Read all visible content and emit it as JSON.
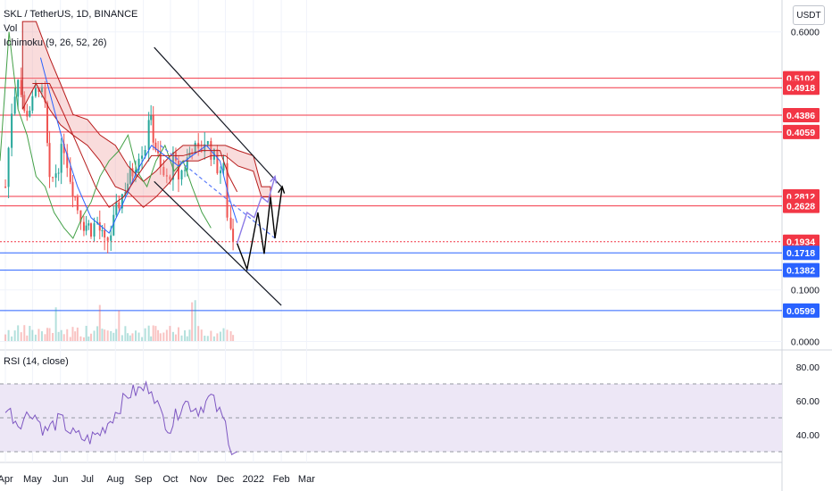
{
  "header": {
    "symbol_line": "SKL / TetherUS, 1D, BINANCE",
    "vol_label": "Vol",
    "ichimoku_label": "Ichimoku (9, 26, 52, 26)",
    "rsi_label": "RSI (14, close)",
    "unit": "USDT"
  },
  "colors": {
    "up": "#26a69a",
    "down": "#ef5350",
    "level_red": "#f23645",
    "level_blue": "#2962ff",
    "ichimoku_tenkan": "#2962ff",
    "ichimoku_kijun": "#b71c1c",
    "ichimoku_lagging": "#43a047",
    "cloud_bull": "#a5d6a7",
    "cloud_bear": "#ef9a9a",
    "rsi_line": "#7e57c2",
    "rsi_band": "#ede7f6",
    "channel": "#131722",
    "projection_black": "#000000",
    "projection_purple": "#8c7ae6"
  },
  "chart_data": [
    {
      "type": "line",
      "panel": "price",
      "y_axis_ticks": [
        "0.6000",
        "0.1000",
        "0.0000"
      ],
      "x_axis_ticks": [
        "Apr",
        "May",
        "Jun",
        "Jul",
        "Aug",
        "Sep",
        "Oct",
        "Nov",
        "Dec",
        "2022",
        "Feb",
        "Mar"
      ],
      "price_path": [
        [
          "2021-04-01",
          0.3
        ],
        [
          "2021-04-08",
          0.45
        ],
        [
          "2021-04-15",
          0.52
        ],
        [
          "2021-04-22",
          0.44
        ],
        [
          "2021-05-01",
          0.46
        ],
        [
          "2021-05-08",
          0.5
        ],
        [
          "2021-05-15",
          0.45
        ],
        [
          "2021-05-20",
          0.3
        ],
        [
          "2021-05-27",
          0.33
        ],
        [
          "2021-06-05",
          0.38
        ],
        [
          "2021-06-12",
          0.32
        ],
        [
          "2021-06-20",
          0.26
        ],
        [
          "2021-06-27",
          0.23
        ],
        [
          "2021-07-05",
          0.22
        ],
        [
          "2021-07-12",
          0.23
        ],
        [
          "2021-07-20",
          0.185
        ],
        [
          "2021-07-27",
          0.21
        ],
        [
          "2021-08-05",
          0.27
        ],
        [
          "2021-08-12",
          0.3
        ],
        [
          "2021-08-20",
          0.33
        ],
        [
          "2021-08-27",
          0.37
        ],
        [
          "2021-09-03",
          0.38
        ],
        [
          "2021-09-07",
          0.44
        ],
        [
          "2021-09-12",
          0.4
        ],
        [
          "2021-09-20",
          0.33
        ],
        [
          "2021-09-27",
          0.31
        ],
        [
          "2021-10-04",
          0.35
        ],
        [
          "2021-10-10",
          0.32
        ],
        [
          "2021-10-17",
          0.34
        ],
        [
          "2021-10-25",
          0.38
        ],
        [
          "2021-11-01",
          0.36
        ],
        [
          "2021-11-08",
          0.39
        ],
        [
          "2021-11-15",
          0.37
        ],
        [
          "2021-11-22",
          0.34
        ],
        [
          "2021-11-29",
          0.33
        ],
        [
          "2021-12-03",
          0.25
        ],
        [
          "2021-12-07",
          0.22
        ],
        [
          "2021-12-12",
          0.19
        ]
      ],
      "horizontal_levels": [
        {
          "value": 0.5102,
          "label": "0.5102",
          "kind": "resistance"
        },
        {
          "value": 0.4918,
          "label": "0.4918",
          "kind": "resistance"
        },
        {
          "value": 0.4386,
          "label": "0.4386",
          "kind": "resistance"
        },
        {
          "value": 0.4059,
          "label": "0.4059",
          "kind": "resistance"
        },
        {
          "value": 0.2812,
          "label": "0.2812",
          "kind": "resistance"
        },
        {
          "value": 0.2628,
          "label": "0.2628",
          "kind": "resistance"
        },
        {
          "value": 0.1934,
          "label": "0.1934",
          "kind": "current"
        },
        {
          "value": 0.1718,
          "label": "0.1718",
          "kind": "support"
        },
        {
          "value": 0.1382,
          "label": "0.1382",
          "kind": "support"
        },
        {
          "value": 0.0599,
          "label": "0.0599",
          "kind": "support"
        }
      ],
      "channel": {
        "upper": [
          [
            "2021-09-13",
            0.57
          ],
          [
            "2022-02-01",
            0.3
          ]
        ],
        "lower": [
          [
            "2021-09-13",
            0.31
          ],
          [
            "2022-02-01",
            0.07
          ]
        ]
      },
      "projection_black": [
        [
          "2021-12-14",
          0.19
        ],
        [
          "2021-12-25",
          0.14
        ],
        [
          "2022-01-06",
          0.25
        ],
        [
          "2022-01-13",
          0.17
        ],
        [
          "2022-01-20",
          0.28
        ],
        [
          "2022-01-25",
          0.2
        ],
        [
          "2022-02-02",
          0.3
        ]
      ],
      "projection_purple": [
        [
          "2021-12-14",
          0.19
        ],
        [
          "2021-12-25",
          0.25
        ],
        [
          "2022-01-02",
          0.24
        ],
        [
          "2022-01-10",
          0.28
        ],
        [
          "2022-01-17",
          0.27
        ],
        [
          "2022-01-25",
          0.32
        ]
      ]
    },
    {
      "type": "line",
      "panel": "rsi",
      "title": "RSI (14, close)",
      "y_axis_ticks": [
        "80.00",
        "60.00",
        "40.00"
      ],
      "ylim": [
        25,
        85
      ],
      "band": [
        30,
        70
      ],
      "midline": 50,
      "x": [
        "2021-04-01",
        "2021-04-15",
        "2021-05-01",
        "2021-05-15",
        "2021-06-01",
        "2021-06-15",
        "2021-07-01",
        "2021-07-15",
        "2021-08-01",
        "2021-08-15",
        "2021-09-01",
        "2021-09-10",
        "2021-09-20",
        "2021-10-01",
        "2021-10-15",
        "2021-11-01",
        "2021-11-15",
        "2021-12-01",
        "2021-12-08",
        "2021-12-14"
      ],
      "values": [
        57,
        47,
        54,
        42,
        49,
        40,
        37,
        41,
        53,
        64,
        67,
        69,
        52,
        44,
        60,
        55,
        62,
        46,
        32,
        30
      ]
    }
  ]
}
